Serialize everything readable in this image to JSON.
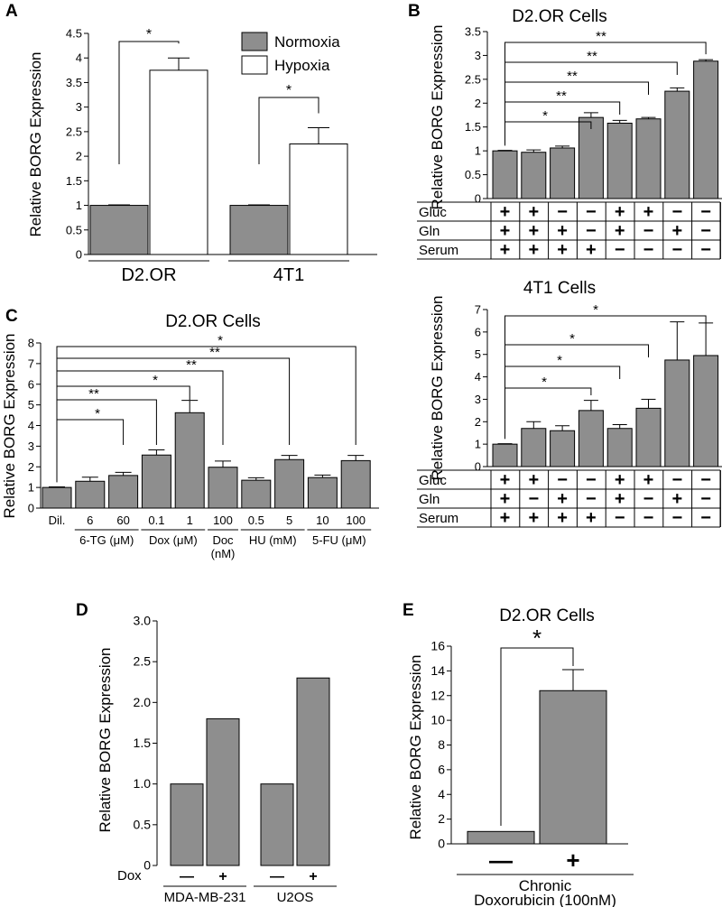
{
  "panels": {
    "A": {
      "letter": "A",
      "chart_data": {
        "type": "bar",
        "ylabel": "Relative BORG Expression",
        "ylim": [
          0,
          4.5
        ],
        "yticks": [
          "0",
          "0.5",
          "1",
          "1.5",
          "2",
          "2.5",
          "3",
          "3.5",
          "4",
          "4.5"
        ],
        "groups": [
          "D2.OR",
          "4T1"
        ],
        "series": [
          {
            "name": "Normoxia",
            "color": "#8e8e8e",
            "values": [
              1.0,
              1.0
            ],
            "errors": [
              0.01,
              0.01
            ]
          },
          {
            "name": "Hypoxia",
            "color": "#ffffff",
            "values": [
              3.75,
              2.25
            ],
            "errors": [
              0.25,
              0.33
            ]
          }
        ],
        "significance": [
          "*",
          "*"
        ]
      }
    },
    "B": {
      "letter": "B",
      "charts": [
        {
          "title": "D2.OR Cells",
          "chart_data": {
            "type": "bar",
            "ylabel": "Relative BORG Expression",
            "ylim": [
              0,
              3.5
            ],
            "yticks": [
              "0",
              "0.5",
              "1",
              "1.5",
              "2",
              "2.5",
              "3",
              "3.5"
            ],
            "values": [
              1.0,
              0.97,
              1.06,
              1.7,
              1.58,
              1.67,
              2.25,
              2.88
            ],
            "errors": [
              0.01,
              0.05,
              0.04,
              0.1,
              0.06,
              0.03,
              0.07,
              0.03
            ],
            "conditions": {
              "labels": [
                "Gluc",
                "Gln",
                "Serum"
              ],
              "rows": [
                [
                  "+",
                  "+",
                  "−",
                  "−",
                  "+",
                  "+",
                  "−",
                  "−"
                ],
                [
                  "+",
                  "+",
                  "+",
                  "−",
                  "+",
                  "−",
                  "+",
                  "−"
                ],
                [
                  "+",
                  "+",
                  "+",
                  "+",
                  "−",
                  "−",
                  "−",
                  "−"
                ]
              ]
            },
            "comparisons": [
              {
                "to": 3,
                "mark": "*"
              },
              {
                "to": 4,
                "mark": "**"
              },
              {
                "to": 5,
                "mark": "**"
              },
              {
                "to": 6,
                "mark": "**"
              },
              {
                "to": 7,
                "mark": "**"
              }
            ]
          }
        },
        {
          "title": "4T1 Cells",
          "chart_data": {
            "type": "bar",
            "ylabel": "Relative BORG Expression",
            "ylim": [
              0,
              7
            ],
            "yticks": [
              "0",
              "1",
              "2",
              "3",
              "4",
              "5",
              "6",
              "7"
            ],
            "values": [
              1.0,
              1.7,
              1.6,
              2.5,
              1.7,
              2.6,
              4.75,
              4.95
            ],
            "errors": [
              0.02,
              0.3,
              0.22,
              0.45,
              0.17,
              0.4,
              1.7,
              1.45
            ],
            "conditions": {
              "labels": [
                "Gluc",
                "Gln",
                "Serum"
              ],
              "rows": [
                [
                  "+",
                  "+",
                  "−",
                  "−",
                  "+",
                  "+",
                  "−",
                  "−"
                ],
                [
                  "+",
                  "−",
                  "+",
                  "−",
                  "+",
                  "−",
                  "+",
                  "−"
                ],
                [
                  "+",
                  "+",
                  "+",
                  "+",
                  "−",
                  "−",
                  "−",
                  "−"
                ]
              ]
            },
            "comparisons": [
              {
                "to": 3,
                "mark": "*"
              },
              {
                "to": 4,
                "mark": "*"
              },
              {
                "to": 5,
                "mark": "*"
              },
              {
                "to": 7,
                "mark": "*"
              }
            ]
          }
        }
      ]
    },
    "C": {
      "letter": "C",
      "title": "D2.OR Cells",
      "chart_data": {
        "type": "bar",
        "ylabel": "Relative BORG Expression",
        "ylim": [
          0,
          8
        ],
        "yticks": [
          "0",
          "1",
          "2",
          "3",
          "4",
          "5",
          "6",
          "7",
          "8"
        ],
        "categories": [
          "Dil.",
          "6",
          "60",
          "0.1",
          "1",
          "100",
          "0.5",
          "5",
          "10",
          "100"
        ],
        "values": [
          1.0,
          1.3,
          1.58,
          2.57,
          4.62,
          1.98,
          1.35,
          2.35,
          1.48,
          2.3
        ],
        "errors": [
          0.03,
          0.2,
          0.15,
          0.25,
          0.6,
          0.3,
          0.12,
          0.2,
          0.12,
          0.25
        ],
        "drug_groups": [
          {
            "label": "6-TG (μM)",
            "bars": [
              1,
              2
            ]
          },
          {
            "label": "Dox (μM)",
            "bars": [
              3,
              4
            ]
          },
          {
            "label": "Doc",
            "label2": "(nM)",
            "bars": [
              5,
              5
            ]
          },
          {
            "label": "HU (mM)",
            "bars": [
              6,
              7
            ]
          },
          {
            "label": "5-FU (μM)",
            "bars": [
              8,
              9
            ]
          }
        ],
        "comparisons": [
          {
            "to": 2,
            "mark": "*"
          },
          {
            "to": 3,
            "mark": "**"
          },
          {
            "to": 4,
            "mark": "*"
          },
          {
            "to": 5,
            "mark": "**"
          },
          {
            "to": 7,
            "mark": "**"
          },
          {
            "to": 9,
            "mark": "*"
          }
        ]
      }
    },
    "D": {
      "letter": "D",
      "chart_data": {
        "type": "bar",
        "ylabel": "Relative BORG Expression",
        "ylim": [
          0,
          3.0
        ],
        "yticks": [
          "0",
          "0.5",
          "1.0",
          "1.5",
          "2.0",
          "2.5",
          "3.0"
        ],
        "dox_label": "Dox",
        "groups": [
          "MDA-MB-231",
          "U2OS"
        ],
        "conditions": [
          "—",
          "+"
        ],
        "values": [
          [
            1.0,
            1.8
          ],
          [
            1.0,
            2.3
          ]
        ]
      }
    },
    "E": {
      "letter": "E",
      "title": "D2.OR Cells",
      "chart_data": {
        "type": "bar",
        "ylabel": "Relative BORG Expression",
        "ylim": [
          0,
          16
        ],
        "yticks": [
          "0",
          "2",
          "4",
          "6",
          "8",
          "10",
          "12",
          "14",
          "16"
        ],
        "categories": [
          "—",
          "+"
        ],
        "values": [
          1.0,
          12.4
        ],
        "errors": [
          0,
          1.7
        ],
        "significance": "*",
        "xlabel_line1": "Chronic",
        "xlabel_line2": "Doxorubicin (100nM)"
      }
    }
  }
}
